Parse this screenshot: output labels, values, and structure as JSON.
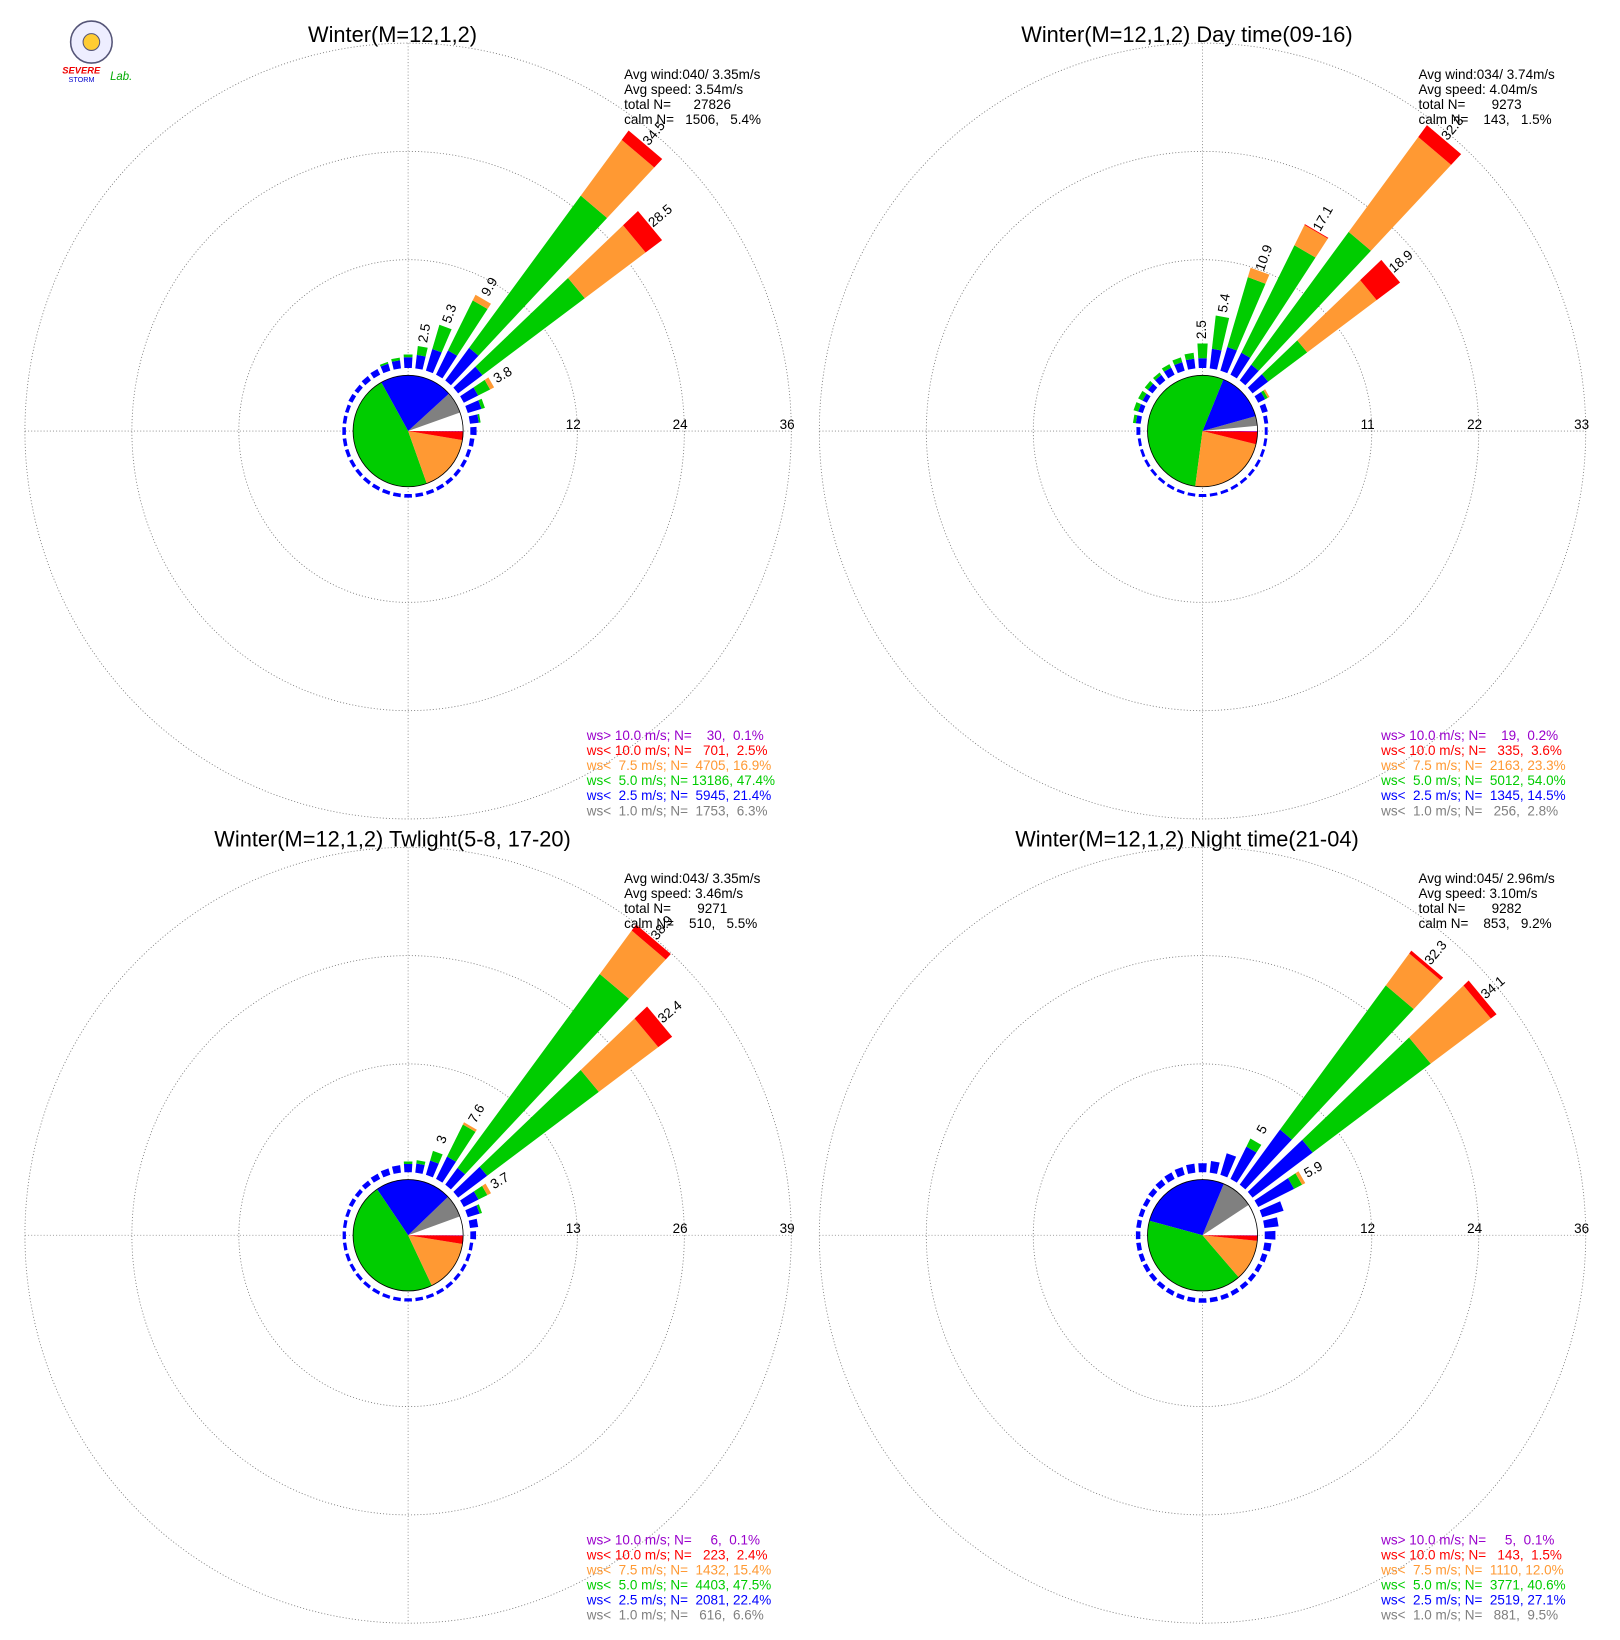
{
  "logo": [
    "SEVERE",
    "STORM",
    "Lab."
  ],
  "chart_data": [
    {
      "type": "wind_rose",
      "title": "Winter(M=12,1,2)",
      "stats": [
        "Avg wind:040/ 3.35m/s",
        "Avg speed: 3.54m/s",
        "total N=      27826",
        "calm N=   1506,   5.4%"
      ],
      "legend": [
        "ws> 10.0 m/s; N=    30,  0.1%",
        "ws< 10.0 m/s; N=   701,  2.5%",
        "ws<  7.5 m/s; N=  4705, 16.9%",
        "ws<  5.0 m/s; N= 13186, 47.4%",
        "ws<  2.5 m/s; N=  5945, 21.4%",
        "ws<  1.0 m/s; N=  1753,  6.3%"
      ],
      "legend_colors": [
        "#9900cc",
        "#ff0000",
        "#ff9933",
        "#00cc00",
        "#0000ff",
        "#808080"
      ],
      "segment_colors": [
        "#0000ff",
        "#00cc00",
        "#ff9933",
        "#ff0000"
      ],
      "pie_colors": [
        "#ffffff",
        "#808080",
        "#0000ff",
        "#00cc00",
        "#ff9933",
        "#ff0000",
        "#9900cc"
      ],
      "pie": [
        5.4,
        6.3,
        21.4,
        47.4,
        16.9,
        2.5,
        0.1
      ],
      "rlim": [
        0,
        36
      ],
      "rticks": [
        12,
        24,
        36
      ],
      "directions": [
        0,
        10,
        20,
        30,
        40,
        50,
        60,
        70,
        80,
        90,
        100,
        110,
        120,
        130,
        140,
        150,
        160,
        170,
        180,
        190,
        200,
        210,
        220,
        230,
        240,
        250,
        260,
        270,
        280,
        290,
        300,
        310,
        320,
        330,
        340,
        350
      ],
      "segments": [
        [
          1.2,
          0.3
        ],
        [
          1.5,
          1.0
        ],
        [
          2.5,
          2.8
        ],
        [
          3.0,
          6.2,
          0.7
        ],
        [
          4.5,
          21.0,
          7.7,
          1.3
        ],
        [
          3.4,
          14.3,
          8.5,
          2.3
        ],
        [
          1.8,
          1.5,
          0.5
        ],
        [
          1.6,
          0.4
        ],
        [
          1.0,
          0.2
        ],
        [
          0.7
        ],
        [
          0.5
        ],
        [
          0.4
        ],
        [
          0.4
        ],
        [
          0.4
        ],
        [
          0.4
        ],
        [
          0.4
        ],
        [
          0.4
        ],
        [
          0.4
        ],
        [
          0.4
        ],
        [
          0.4
        ],
        [
          0.4
        ],
        [
          0.4
        ],
        [
          0.4
        ],
        [
          0.4
        ],
        [
          0.4
        ],
        [
          0.4
        ],
        [
          0.4
        ],
        [
          0.4
        ],
        [
          0.4
        ],
        [
          0.4
        ],
        [
          0.5
        ],
        [
          0.5
        ],
        [
          0.6
        ],
        [
          0.7
        ],
        [
          0.8,
          0.2
        ],
        [
          0.9,
          0.3
        ]
      ],
      "labels": [
        null,
        2.5,
        5.3,
        9.9,
        34.5,
        28.5,
        3.8,
        null,
        null,
        null,
        null,
        null,
        null,
        null,
        null,
        null,
        null,
        null,
        null,
        null,
        null,
        null,
        null,
        null,
        null,
        null,
        null,
        null,
        null,
        null,
        null,
        null,
        null,
        null,
        null,
        null
      ]
    },
    {
      "type": "wind_rose",
      "title": "Winter(M=12,1,2) Day time(09-16)",
      "stats": [
        "Avg wind:034/ 3.74m/s",
        "Avg speed: 4.04m/s",
        "total N=       9273",
        "calm N=    143,   1.5%"
      ],
      "legend": [
        "ws> 10.0 m/s; N=    19,  0.2%",
        "ws< 10.0 m/s; N=   335,  3.6%",
        "ws<  7.5 m/s; N=  2163, 23.3%",
        "ws<  5.0 m/s; N=  5012, 54.0%",
        "ws<  2.5 m/s; N=  1345, 14.5%",
        "ws<  1.0 m/s; N=   256,  2.8%"
      ],
      "legend_colors": [
        "#9900cc",
        "#ff0000",
        "#ff9933",
        "#00cc00",
        "#0000ff",
        "#808080"
      ],
      "segment_colors": [
        "#0000ff",
        "#00cc00",
        "#ff9933",
        "#ff0000"
      ],
      "pie_colors": [
        "#ffffff",
        "#808080",
        "#0000ff",
        "#00cc00",
        "#ff9933",
        "#ff0000",
        "#9900cc"
      ],
      "pie": [
        1.5,
        2.8,
        14.5,
        54.0,
        23.3,
        3.6,
        0.2
      ],
      "rlim": [
        0,
        33
      ],
      "rticks": [
        11,
        22,
        33
      ],
      "directions": [
        0,
        10,
        20,
        30,
        40,
        50,
        60,
        70,
        80,
        90,
        100,
        110,
        120,
        130,
        140,
        150,
        160,
        170,
        180,
        190,
        200,
        210,
        220,
        230,
        240,
        250,
        260,
        270,
        280,
        290,
        300,
        310,
        320,
        330,
        340,
        350
      ],
      "segments": [
        [
          1.0,
          1.5
        ],
        [
          2.0,
          3.4
        ],
        [
          2.5,
          7.4,
          1.0
        ],
        [
          2.5,
          12.2,
          2.3,
          0.1
        ],
        [
          2.0,
          16.8,
          12.0,
          1.5
        ],
        [
          2.0,
          5.0,
          8.9,
          3.0
        ],
        [
          0.8,
          0.3,
          0.2
        ],
        [
          0.6
        ],
        [
          0.4
        ],
        [
          0.3
        ],
        [
          0.3
        ],
        [
          0.3
        ],
        [
          0.3
        ],
        [
          0.3
        ],
        [
          0.3
        ],
        [
          0.3
        ],
        [
          0.3
        ],
        [
          0.3
        ],
        [
          0.3
        ],
        [
          0.3
        ],
        [
          0.3
        ],
        [
          0.3
        ],
        [
          0.3
        ],
        [
          0.3
        ],
        [
          0.3
        ],
        [
          0.3
        ],
        [
          0.3
        ],
        [
          0.4
        ],
        [
          0.5,
          0.3
        ],
        [
          0.5,
          0.5
        ],
        [
          0.5,
          0.5
        ],
        [
          0.6,
          0.4
        ],
        [
          0.7,
          0.3
        ],
        [
          0.8,
          0.4
        ],
        [
          0.9,
          0.5
        ],
        [
          1.0,
          0.6
        ]
      ],
      "labels": [
        2.5,
        5.4,
        10.9,
        17.1,
        32.3,
        18.9,
        null,
        null,
        null,
        null,
        null,
        null,
        null,
        null,
        null,
        null,
        null,
        null,
        null,
        null,
        null,
        null,
        null,
        null,
        null,
        null,
        null,
        null,
        null,
        null,
        null,
        null,
        null,
        null,
        null,
        null
      ]
    },
    {
      "type": "wind_rose",
      "title": "Winter(M=12,1,2) Twlight(5-8, 17-20)",
      "stats": [
        "Avg wind:043/ 3.35m/s",
        "Avg speed: 3.46m/s",
        "total N=       9271",
        "calm N=    510,   5.5%"
      ],
      "legend": [
        "ws> 10.0 m/s; N=     6,  0.1%",
        "ws< 10.0 m/s; N=   223,  2.4%",
        "ws<  7.5 m/s; N=  1432, 15.4%",
        "ws<  5.0 m/s; N=  4403, 47.5%",
        "ws<  2.5 m/s; N=  2081, 22.4%",
        "ws<  1.0 m/s; N=   616,  6.6%"
      ],
      "legend_colors": [
        "#9900cc",
        "#ff0000",
        "#ff9933",
        "#00cc00",
        "#0000ff",
        "#808080"
      ],
      "segment_colors": [
        "#0000ff",
        "#00cc00",
        "#ff9933",
        "#ff0000"
      ],
      "pie_colors": [
        "#ffffff",
        "#808080",
        "#0000ff",
        "#00cc00",
        "#ff9933",
        "#ff0000",
        "#9900cc"
      ],
      "pie": [
        5.5,
        6.6,
        22.4,
        47.5,
        15.4,
        2.4,
        0.1
      ],
      "rlim": [
        0,
        39
      ],
      "rticks": [
        13,
        26,
        39
      ],
      "directions": [
        0,
        10,
        20,
        30,
        40,
        50,
        60,
        70,
        80,
        90,
        100,
        110,
        120,
        130,
        140,
        150,
        160,
        170,
        180,
        190,
        200,
        210,
        220,
        230,
        240,
        250,
        260,
        270,
        280,
        290,
        300,
        310,
        320,
        330,
        340,
        350
      ],
      "segments": [
        [
          1.0,
          0.3
        ],
        [
          1.1,
          0.4
        ],
        [
          1.8,
          1.2
        ],
        [
          3.0,
          4.3,
          0.3
        ],
        [
          2.5,
          29.0,
          6.5,
          0.9
        ],
        [
          4.4,
          16.9,
          9.0,
          2.1
        ],
        [
          2.0,
          1.2,
          0.5
        ],
        [
          1.5,
          0.3
        ],
        [
          1.0
        ],
        [
          0.7
        ],
        [
          0.4
        ],
        [
          0.4
        ],
        [
          0.4
        ],
        [
          0.4
        ],
        [
          0.4
        ],
        [
          0.4
        ],
        [
          0.4
        ],
        [
          0.4
        ],
        [
          0.4
        ],
        [
          0.4
        ],
        [
          0.4
        ],
        [
          0.4
        ],
        [
          0.4
        ],
        [
          0.4
        ],
        [
          0.4
        ],
        [
          0.4
        ],
        [
          0.4
        ],
        [
          0.4
        ],
        [
          0.4
        ],
        [
          0.4
        ],
        [
          0.5
        ],
        [
          0.5
        ],
        [
          0.6
        ],
        [
          0.7
        ],
        [
          0.8
        ],
        [
          0.9
        ]
      ],
      "labels": [
        null,
        null,
        3.0,
        7.6,
        38.9,
        32.4,
        3.7,
        null,
        null,
        null,
        null,
        null,
        null,
        null,
        null,
        null,
        null,
        null,
        null,
        null,
        null,
        null,
        null,
        null,
        null,
        null,
        null,
        null,
        null,
        null,
        null,
        null,
        null,
        null,
        null,
        null
      ]
    },
    {
      "type": "wind_rose",
      "title": "Winter(M=12,1,2) Night time(21-04)",
      "stats": [
        "Avg wind:045/ 2.96m/s",
        "Avg speed: 3.10m/s",
        "total N=       9282",
        "calm N=    853,   9.2%"
      ],
      "legend": [
        "ws> 10.0 m/s; N=     5,  0.1%",
        "ws< 10.0 m/s; N=   143,  1.5%",
        "ws<  7.5 m/s; N=  1110, 12.0%",
        "ws<  5.0 m/s; N=  3771, 40.6%",
        "ws<  2.5 m/s; N=  2519, 27.1%",
        "ws<  1.0 m/s; N=   881,  9.5%"
      ],
      "legend_colors": [
        "#9900cc",
        "#ff0000",
        "#ff9933",
        "#00cc00",
        "#0000ff",
        "#808080"
      ],
      "segment_colors": [
        "#0000ff",
        "#00cc00",
        "#ff9933",
        "#ff0000"
      ],
      "pie_colors": [
        "#ffffff",
        "#808080",
        "#0000ff",
        "#00cc00",
        "#ff9933",
        "#ff0000",
        "#9900cc"
      ],
      "pie": [
        9.2,
        9.5,
        27.1,
        40.6,
        12.0,
        1.5,
        0.1
      ],
      "rlim": [
        0,
        36
      ],
      "rticks": [
        12,
        24,
        36
      ],
      "directions": [
        0,
        10,
        20,
        30,
        40,
        50,
        60,
        70,
        80,
        90,
        100,
        110,
        120,
        130,
        140,
        150,
        160,
        170,
        180,
        190,
        200,
        210,
        220,
        230,
        240,
        250,
        260,
        270,
        280,
        290,
        300,
        310,
        320,
        330,
        340,
        350
      ],
      "segments": [
        [
          1.0
        ],
        [
          1.3
        ],
        [
          2.5
        ],
        [
          4.0,
          1.0
        ],
        [
          7.6,
          19.9,
          4.4,
          0.4
        ],
        [
          8.4,
          16.5,
          8.4,
          0.8
        ],
        [
          4.5,
          1.0,
          0.4
        ],
        [
          2.5
        ],
        [
          1.6
        ],
        [
          1.2
        ],
        [
          0.8
        ],
        [
          0.6
        ],
        [
          0.5
        ],
        [
          0.5
        ],
        [
          0.5
        ],
        [
          0.5
        ],
        [
          0.5
        ],
        [
          0.5
        ],
        [
          0.5
        ],
        [
          0.5
        ],
        [
          0.5
        ],
        [
          0.5
        ],
        [
          0.5
        ],
        [
          0.5
        ],
        [
          0.5
        ],
        [
          0.5
        ],
        [
          0.5
        ],
        [
          0.5
        ],
        [
          0.5
        ],
        [
          0.5
        ],
        [
          0.5
        ],
        [
          0.6
        ],
        [
          0.7
        ],
        [
          0.8
        ],
        [
          0.9
        ],
        [
          1.0
        ]
      ],
      "labels": [
        null,
        null,
        null,
        5.0,
        32.3,
        34.1,
        5.9,
        null,
        null,
        null,
        null,
        null,
        null,
        null,
        null,
        null,
        null,
        null,
        null,
        null,
        null,
        null,
        null,
        null,
        null,
        null,
        null,
        null,
        null,
        null,
        null,
        null,
        null,
        null,
        null,
        null
      ]
    }
  ]
}
